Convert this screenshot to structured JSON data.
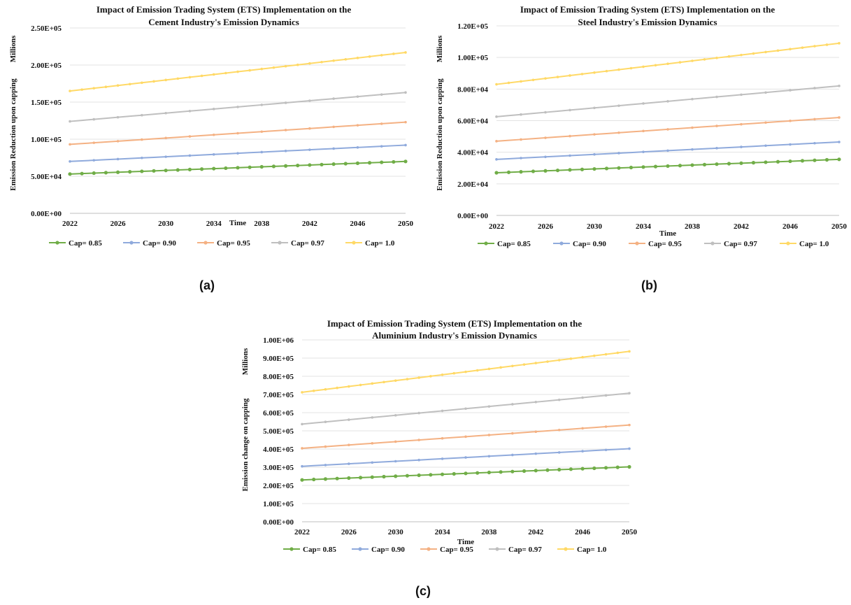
{
  "panel_labels": [
    "(a)",
    "(b)",
    "(c)"
  ],
  "chart_data": [
    {
      "type": "line",
      "title_lines": [
        "Impact of Emission Trading System (ETS) Implementation on the",
        "Cement Industry's Emission Dynamics"
      ],
      "ylabel": "Emission Reduction upon capping",
      "unit_label": "Millions",
      "xlabel": "Time",
      "xlim": [
        2022,
        2050
      ],
      "ylim": [
        0,
        250000
      ],
      "x_ticks": [
        "2022",
        "2026",
        "2030",
        "2034",
        "2038",
        "2042",
        "2046",
        "2050"
      ],
      "y_ticks": [
        "0.00E+00",
        "5.00E+04",
        "1.00E+05",
        "1.50E+05",
        "2.00E+05",
        "2.50E+05"
      ],
      "grid": true,
      "legend_position": "bottom",
      "series": [
        {
          "name": "Cap= 0.85",
          "color": "#70AD47",
          "start": 53000,
          "end": 70000
        },
        {
          "name": "Cap= 0.90",
          "color": "#8FAADC",
          "start": 70000,
          "end": 92000
        },
        {
          "name": "Cap= 0.95",
          "color": "#F4B183",
          "start": 93000,
          "end": 123000
        },
        {
          "name": "Cap= 0.97",
          "color": "#BFBFBF",
          "start": 124000,
          "end": 163000
        },
        {
          "name": "Cap= 1.0",
          "color": "#FFD966",
          "start": 165000,
          "end": 217000
        }
      ]
    },
    {
      "type": "line",
      "title_lines": [
        "Impact of Emission Trading System (ETS) Implementation on the",
        "Steel Industry's Emission Dynamics"
      ],
      "ylabel": "Emission Reduction upon capping",
      "unit_label": "Millions",
      "xlabel": "Time",
      "xlim": [
        2022,
        2050
      ],
      "ylim": [
        0,
        120000
      ],
      "x_ticks": [
        "2022",
        "2026",
        "2030",
        "2034",
        "2038",
        "2042",
        "2046",
        "2050"
      ],
      "y_ticks": [
        "0.00E+00",
        "2.00E+04",
        "4.00E+04",
        "6.00E+04",
        "8.00E+04",
        "1.00E+05",
        "1.20E+05"
      ],
      "grid": true,
      "legend_position": "bottom",
      "series": [
        {
          "name": "Cap= 0.85",
          "color": "#70AD47",
          "start": 27000,
          "end": 35500
        },
        {
          "name": "Cap= 0.90",
          "color": "#8FAADC",
          "start": 35500,
          "end": 46500
        },
        {
          "name": "Cap= 0.95",
          "color": "#F4B183",
          "start": 47000,
          "end": 62000
        },
        {
          "name": "Cap= 0.97",
          "color": "#BFBFBF",
          "start": 62500,
          "end": 82000
        },
        {
          "name": "Cap= 1.0",
          "color": "#FFD966",
          "start": 83000,
          "end": 109000
        }
      ]
    },
    {
      "type": "line",
      "title_lines": [
        "Impact of Emission Trading System (ETS) Implementation on the",
        "Aluminium Industry's Emission Dynamics"
      ],
      "ylabel": "Emission change on capping",
      "unit_label": "Millions",
      "xlabel": "Time",
      "xlim": [
        2022,
        2050
      ],
      "ylim": [
        0,
        1000000
      ],
      "x_ticks": [
        "2022",
        "2026",
        "2030",
        "2034",
        "2038",
        "2042",
        "2046",
        "2050"
      ],
      "y_ticks": [
        "0.00E+00",
        "1.00E+05",
        "2.00E+05",
        "3.00E+05",
        "4.00E+05",
        "5.00E+05",
        "6.00E+05",
        "7.00E+05",
        "8.00E+05",
        "9.00E+05",
        "1.00E+06"
      ],
      "grid": true,
      "legend_position": "bottom",
      "series": [
        {
          "name": "Cap= 0.85",
          "color": "#70AD47",
          "start": 230000,
          "end": 302000
        },
        {
          "name": "Cap= 0.90",
          "color": "#8FAADC",
          "start": 305000,
          "end": 402000
        },
        {
          "name": "Cap= 0.95",
          "color": "#F4B183",
          "start": 404000,
          "end": 532000
        },
        {
          "name": "Cap= 0.97",
          "color": "#BFBFBF",
          "start": 537000,
          "end": 707000
        },
        {
          "name": "Cap= 1.0",
          "color": "#FFD966",
          "start": 712000,
          "end": 937000
        }
      ]
    }
  ]
}
